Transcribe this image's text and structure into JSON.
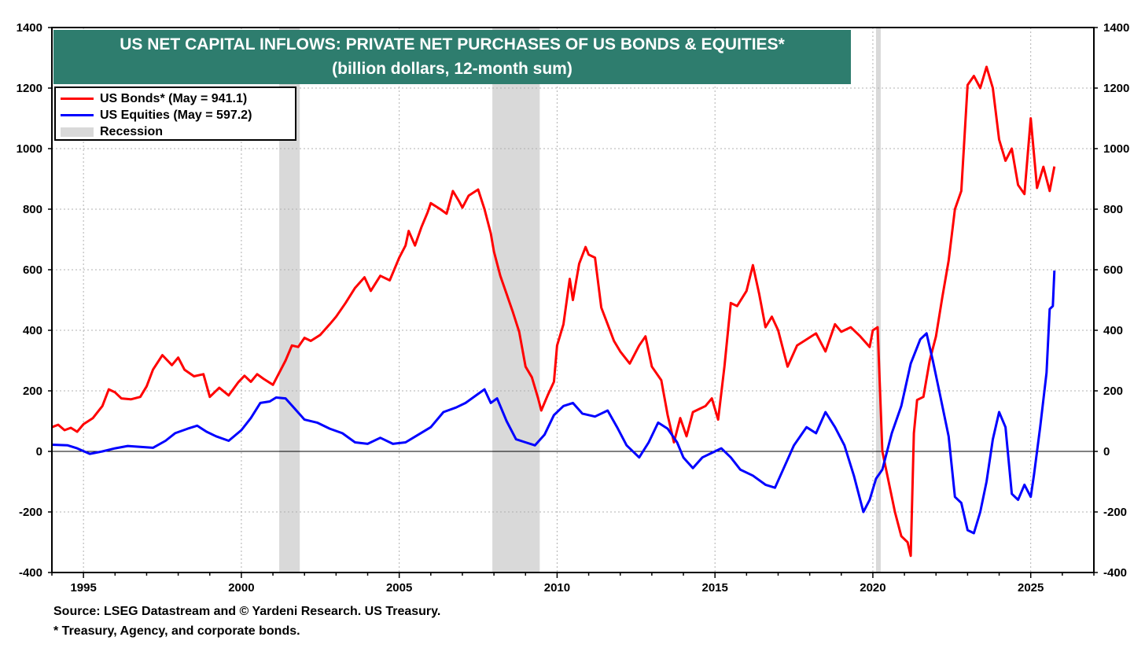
{
  "chart_data": {
    "type": "line",
    "title": "US NET CAPITAL INFLOWS: PRIVATE NET PURCHASES OF US BONDS & EQUITIES*",
    "subtitle": "(billion dollars, 12-month sum)",
    "xlabel": "",
    "ylabel": "",
    "xlim": [
      1994.0,
      2027.0
    ],
    "ylim": [
      -400,
      1400
    ],
    "y_ticks": [
      "1400",
      "1200",
      "1000",
      "800",
      "600",
      "400",
      "200",
      "0",
      "-200",
      "-400"
    ],
    "y_tick_values": [
      1400,
      1200,
      1000,
      800,
      600,
      400,
      200,
      0,
      -200,
      -400
    ],
    "x_ticks": [
      "1995",
      "2000",
      "2005",
      "2010",
      "2015",
      "2020",
      "2025"
    ],
    "x_tick_values": [
      1995,
      2000,
      2005,
      2010,
      2015,
      2020,
      2025
    ],
    "grid": true,
    "legend_position": "top-left",
    "recessions": [
      {
        "name": "2001 recession",
        "start": 2001.2,
        "end": 2001.85
      },
      {
        "name": "2008 recession",
        "start": 2007.95,
        "end": 2009.45
      },
      {
        "name": "2020 recession",
        "start": 2020.1,
        "end": 2020.25
      }
    ],
    "series": [
      {
        "name": "US Bonds*",
        "legend_label": "US Bonds* (May = 941.1)",
        "color": "#ff0000",
        "points": [
          [
            1994.0,
            80
          ],
          [
            1994.2,
            88
          ],
          [
            1994.4,
            70
          ],
          [
            1994.6,
            78
          ],
          [
            1994.8,
            65
          ],
          [
            1995.0,
            90
          ],
          [
            1995.3,
            110
          ],
          [
            1995.6,
            150
          ],
          [
            1995.8,
            205
          ],
          [
            1996.0,
            195
          ],
          [
            1996.2,
            175
          ],
          [
            1996.5,
            172
          ],
          [
            1996.8,
            180
          ],
          [
            1997.0,
            215
          ],
          [
            1997.2,
            270
          ],
          [
            1997.5,
            318
          ],
          [
            1997.8,
            285
          ],
          [
            1998.0,
            310
          ],
          [
            1998.2,
            270
          ],
          [
            1998.5,
            248
          ],
          [
            1998.8,
            255
          ],
          [
            1999.0,
            180
          ],
          [
            1999.3,
            210
          ],
          [
            1999.6,
            185
          ],
          [
            1999.9,
            228
          ],
          [
            2000.1,
            250
          ],
          [
            2000.3,
            230
          ],
          [
            2000.5,
            255
          ],
          [
            2000.7,
            240
          ],
          [
            2001.0,
            220
          ],
          [
            2001.2,
            260
          ],
          [
            2001.4,
            300
          ],
          [
            2001.6,
            350
          ],
          [
            2001.8,
            345
          ],
          [
            2002.0,
            375
          ],
          [
            2002.2,
            365
          ],
          [
            2002.5,
            385
          ],
          [
            2002.8,
            420
          ],
          [
            2003.0,
            445
          ],
          [
            2003.3,
            490
          ],
          [
            2003.6,
            540
          ],
          [
            2003.9,
            575
          ],
          [
            2004.1,
            530
          ],
          [
            2004.4,
            580
          ],
          [
            2004.7,
            565
          ],
          [
            2005.0,
            640
          ],
          [
            2005.2,
            680
          ],
          [
            2005.3,
            728
          ],
          [
            2005.5,
            680
          ],
          [
            2005.7,
            740
          ],
          [
            2005.9,
            790
          ],
          [
            2006.0,
            820
          ],
          [
            2006.3,
            800
          ],
          [
            2006.5,
            785
          ],
          [
            2006.7,
            860
          ],
          [
            2006.9,
            825
          ],
          [
            2007.0,
            805
          ],
          [
            2007.2,
            845
          ],
          [
            2007.5,
            865
          ],
          [
            2007.7,
            800
          ],
          [
            2007.9,
            720
          ],
          [
            2008.0,
            660
          ],
          [
            2008.2,
            580
          ],
          [
            2008.4,
            520
          ],
          [
            2008.6,
            460
          ],
          [
            2008.8,
            395
          ],
          [
            2009.0,
            280
          ],
          [
            2009.2,
            245
          ],
          [
            2009.4,
            175
          ],
          [
            2009.5,
            135
          ],
          [
            2009.7,
            185
          ],
          [
            2009.9,
            230
          ],
          [
            2010.0,
            350
          ],
          [
            2010.2,
            420
          ],
          [
            2010.4,
            570
          ],
          [
            2010.5,
            500
          ],
          [
            2010.7,
            620
          ],
          [
            2010.9,
            675
          ],
          [
            2011.0,
            650
          ],
          [
            2011.2,
            640
          ],
          [
            2011.4,
            475
          ],
          [
            2011.6,
            420
          ],
          [
            2011.8,
            365
          ],
          [
            2012.0,
            330
          ],
          [
            2012.3,
            290
          ],
          [
            2012.6,
            350
          ],
          [
            2012.8,
            380
          ],
          [
            2013.0,
            280
          ],
          [
            2013.3,
            235
          ],
          [
            2013.5,
            120
          ],
          [
            2013.7,
            30
          ],
          [
            2013.9,
            110
          ],
          [
            2014.1,
            50
          ],
          [
            2014.3,
            130
          ],
          [
            2014.5,
            140
          ],
          [
            2014.7,
            150
          ],
          [
            2014.9,
            175
          ],
          [
            2015.1,
            105
          ],
          [
            2015.3,
            280
          ],
          [
            2015.5,
            490
          ],
          [
            2015.7,
            480
          ],
          [
            2016.0,
            530
          ],
          [
            2016.2,
            615
          ],
          [
            2016.4,
            520
          ],
          [
            2016.6,
            410
          ],
          [
            2016.8,
            445
          ],
          [
            2017.0,
            400
          ],
          [
            2017.3,
            280
          ],
          [
            2017.6,
            350
          ],
          [
            2017.9,
            370
          ],
          [
            2018.2,
            390
          ],
          [
            2018.5,
            330
          ],
          [
            2018.8,
            420
          ],
          [
            2019.0,
            395
          ],
          [
            2019.3,
            410
          ],
          [
            2019.6,
            380
          ],
          [
            2019.9,
            345
          ],
          [
            2020.0,
            400
          ],
          [
            2020.15,
            410
          ],
          [
            2020.3,
            0
          ],
          [
            2020.5,
            -100
          ],
          [
            2020.7,
            -200
          ],
          [
            2020.9,
            -280
          ],
          [
            2021.1,
            -300
          ],
          [
            2021.2,
            -345
          ],
          [
            2021.3,
            60
          ],
          [
            2021.4,
            170
          ],
          [
            2021.6,
            180
          ],
          [
            2021.8,
            300
          ],
          [
            2022.0,
            380
          ],
          [
            2022.2,
            510
          ],
          [
            2022.4,
            630
          ],
          [
            2022.6,
            800
          ],
          [
            2022.8,
            860
          ],
          [
            2023.0,
            1210
          ],
          [
            2023.2,
            1240
          ],
          [
            2023.4,
            1200
          ],
          [
            2023.6,
            1270
          ],
          [
            2023.8,
            1200
          ],
          [
            2024.0,
            1030
          ],
          [
            2024.2,
            960
          ],
          [
            2024.4,
            1000
          ],
          [
            2024.6,
            880
          ],
          [
            2024.8,
            850
          ],
          [
            2025.0,
            1100
          ],
          [
            2025.2,
            870
          ],
          [
            2025.4,
            940
          ],
          [
            2025.6,
            860
          ],
          [
            2025.75,
            941.1
          ]
        ]
      },
      {
        "name": "US Equities",
        "legend_label": "US Equities (May = 597.2)",
        "color": "#0000ff",
        "points": [
          [
            1994.0,
            22
          ],
          [
            1994.5,
            20
          ],
          [
            1994.8,
            10
          ],
          [
            1995.2,
            -8
          ],
          [
            1995.6,
            0
          ],
          [
            1996.0,
            10
          ],
          [
            1996.4,
            18
          ],
          [
            1996.8,
            15
          ],
          [
            1997.2,
            12
          ],
          [
            1997.6,
            35
          ],
          [
            1997.9,
            60
          ],
          [
            1998.3,
            75
          ],
          [
            1998.6,
            85
          ],
          [
            1998.9,
            65
          ],
          [
            1999.2,
            50
          ],
          [
            1999.6,
            35
          ],
          [
            2000.0,
            70
          ],
          [
            2000.3,
            110
          ],
          [
            2000.6,
            160
          ],
          [
            2000.9,
            165
          ],
          [
            2001.1,
            178
          ],
          [
            2001.4,
            175
          ],
          [
            2001.7,
            140
          ],
          [
            2002.0,
            105
          ],
          [
            2002.4,
            95
          ],
          [
            2002.8,
            75
          ],
          [
            2003.2,
            60
          ],
          [
            2003.6,
            30
          ],
          [
            2004.0,
            25
          ],
          [
            2004.4,
            45
          ],
          [
            2004.8,
            25
          ],
          [
            2005.2,
            30
          ],
          [
            2005.6,
            55
          ],
          [
            2006.0,
            80
          ],
          [
            2006.4,
            130
          ],
          [
            2006.8,
            145
          ],
          [
            2007.1,
            160
          ],
          [
            2007.5,
            190
          ],
          [
            2007.7,
            205
          ],
          [
            2007.9,
            160
          ],
          [
            2008.1,
            175
          ],
          [
            2008.4,
            100
          ],
          [
            2008.7,
            40
          ],
          [
            2009.0,
            30
          ],
          [
            2009.3,
            20
          ],
          [
            2009.6,
            55
          ],
          [
            2009.9,
            120
          ],
          [
            2010.2,
            150
          ],
          [
            2010.5,
            160
          ],
          [
            2010.8,
            125
          ],
          [
            2011.2,
            115
          ],
          [
            2011.6,
            135
          ],
          [
            2011.9,
            80
          ],
          [
            2012.2,
            20
          ],
          [
            2012.6,
            -20
          ],
          [
            2012.9,
            30
          ],
          [
            2013.2,
            95
          ],
          [
            2013.5,
            75
          ],
          [
            2013.8,
            30
          ],
          [
            2014.0,
            -20
          ],
          [
            2014.3,
            -55
          ],
          [
            2014.6,
            -20
          ],
          [
            2014.9,
            -5
          ],
          [
            2015.2,
            10
          ],
          [
            2015.5,
            -20
          ],
          [
            2015.8,
            -60
          ],
          [
            2016.2,
            -80
          ],
          [
            2016.6,
            -110
          ],
          [
            2016.9,
            -120
          ],
          [
            2017.2,
            -50
          ],
          [
            2017.5,
            20
          ],
          [
            2017.9,
            80
          ],
          [
            2018.2,
            60
          ],
          [
            2018.5,
            130
          ],
          [
            2018.8,
            80
          ],
          [
            2019.1,
            20
          ],
          [
            2019.4,
            -80
          ],
          [
            2019.7,
            -200
          ],
          [
            2019.9,
            -160
          ],
          [
            2020.1,
            -90
          ],
          [
            2020.3,
            -60
          ],
          [
            2020.6,
            60
          ],
          [
            2020.9,
            150
          ],
          [
            2021.2,
            290
          ],
          [
            2021.5,
            370
          ],
          [
            2021.7,
            390
          ],
          [
            2021.9,
            300
          ],
          [
            2022.1,
            200
          ],
          [
            2022.4,
            50
          ],
          [
            2022.6,
            -150
          ],
          [
            2022.8,
            -170
          ],
          [
            2023.0,
            -260
          ],
          [
            2023.2,
            -270
          ],
          [
            2023.4,
            -200
          ],
          [
            2023.6,
            -100
          ],
          [
            2023.8,
            40
          ],
          [
            2024.0,
            130
          ],
          [
            2024.2,
            80
          ],
          [
            2024.4,
            -140
          ],
          [
            2024.6,
            -160
          ],
          [
            2024.8,
            -110
          ],
          [
            2025.0,
            -150
          ],
          [
            2025.1,
            -80
          ],
          [
            2025.3,
            80
          ],
          [
            2025.5,
            260
          ],
          [
            2025.6,
            470
          ],
          [
            2025.7,
            480
          ],
          [
            2025.75,
            597.2
          ]
        ]
      }
    ],
    "legend_recession_label": "Recession"
  },
  "footer": {
    "source": "Source: LSEG Datastream and © Yardeni Research. US Treasury.",
    "note": "* Treasury, Agency, and corporate bonds."
  },
  "colors": {
    "title_bg": "#2e7d6e",
    "recession": "#d9d9d9",
    "bonds": "#ff0000",
    "equities": "#0000ff"
  }
}
